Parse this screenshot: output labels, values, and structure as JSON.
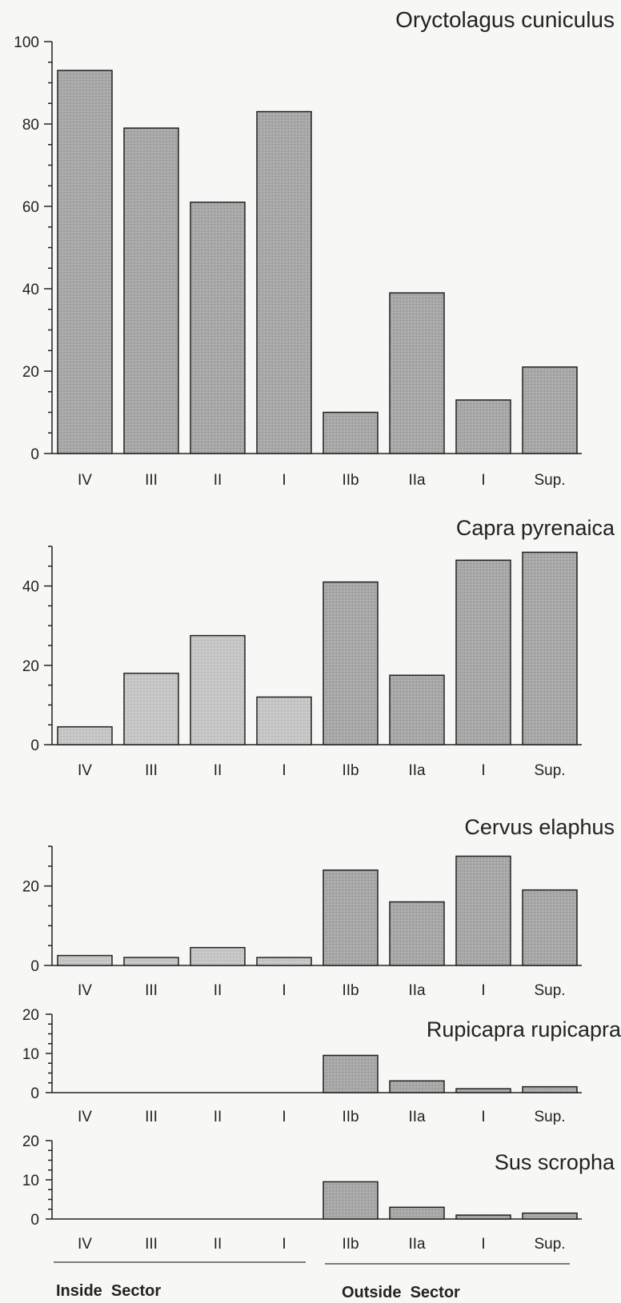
{
  "chart_data": [
    {
      "type": "bar",
      "title": "Oryctolagus cuniculus",
      "categories": [
        "IV",
        "III",
        "II",
        "I",
        "IIb",
        "IIa",
        "I",
        "Sup."
      ],
      "values": [
        93,
        79,
        61,
        83,
        10,
        39,
        13,
        21
      ],
      "ylim": [
        0,
        100
      ],
      "yticks": [
        0,
        20,
        40,
        60,
        80,
        100
      ]
    },
    {
      "type": "bar",
      "title": "Capra pyrenaica",
      "categories": [
        "IV",
        "III",
        "II",
        "I",
        "IIb",
        "IIa",
        "I",
        "Sup."
      ],
      "values": [
        4.5,
        18,
        27.5,
        12,
        41,
        17.5,
        46.5,
        48.5
      ],
      "ylim": [
        0,
        50
      ],
      "yticks": [
        0,
        20,
        40
      ]
    },
    {
      "type": "bar",
      "title": "Cervus elaphus",
      "categories": [
        "IV",
        "III",
        "II",
        "I",
        "IIb",
        "IIa",
        "I",
        "Sup."
      ],
      "values": [
        2.5,
        2,
        4.5,
        2,
        24,
        16,
        27.5,
        19
      ],
      "ylim": [
        0,
        30
      ],
      "yticks": [
        0,
        20
      ]
    },
    {
      "type": "bar",
      "title": "Rupicapra rupicapra",
      "categories": [
        "IV",
        "III",
        "II",
        "I",
        "IIb",
        "IIa",
        "I",
        "Sup."
      ],
      "values": [
        0,
        0,
        0,
        0,
        9.5,
        3,
        1,
        1.5
      ],
      "ylim": [
        0,
        20
      ],
      "yticks": [
        0,
        10,
        20
      ]
    },
    {
      "type": "bar",
      "title": "Sus scropha",
      "categories": [
        "IV",
        "III",
        "II",
        "I",
        "IIb",
        "IIa",
        "I",
        "Sup."
      ],
      "values": [
        0,
        0,
        0,
        0,
        9.5,
        3,
        1,
        1.5
      ],
      "ylim": [
        0,
        20
      ],
      "yticks": [
        0,
        10,
        20
      ]
    }
  ],
  "group_labels": {
    "inside": "Inside  Sector",
    "outside": "Outside  Sector"
  },
  "colors": {
    "bar_fill": "#a9a9a9",
    "bar_fill_light": "#c4c4c4",
    "ink": "#222222"
  }
}
